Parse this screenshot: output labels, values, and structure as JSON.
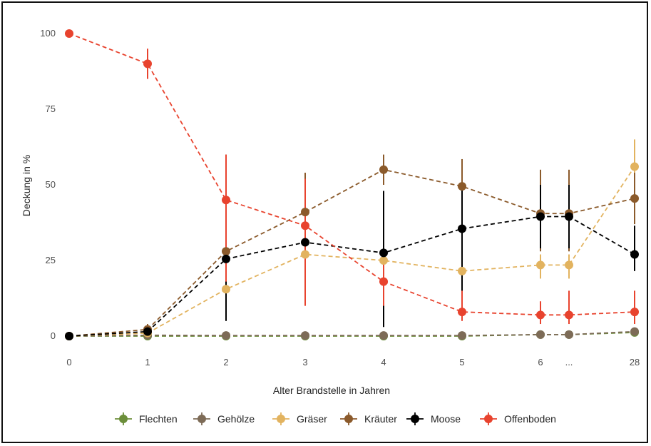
{
  "chart_data": {
    "type": "line",
    "xlabel": "Alter Brandstelle in Jahren",
    "ylabel": "Deckung in %",
    "x_categories": [
      "0",
      "1",
      "2",
      "3",
      "4",
      "5",
      "6",
      "...",
      "28"
    ],
    "y_ticks": [
      0,
      25,
      50,
      75,
      100
    ],
    "ylim": [
      0,
      100
    ],
    "grid": false,
    "legend_position": "bottom",
    "series": [
      {
        "name": "Flechten",
        "color": "#6b8e3a",
        "points": [
          {
            "x": "0",
            "y": 0
          },
          {
            "x": "1",
            "y": 0
          },
          {
            "x": "2",
            "y": 0
          },
          {
            "x": "3",
            "y": 0
          },
          {
            "x": "4",
            "y": 0
          },
          {
            "x": "5",
            "y": 0
          },
          {
            "x": "6",
            "y": 0.5
          },
          {
            "x": "...",
            "y": 0.5
          },
          {
            "x": "28",
            "y": 1.2
          }
        ]
      },
      {
        "name": "Gehölze",
        "color": "#7d6b57",
        "points": [
          {
            "x": "0",
            "y": 0
          },
          {
            "x": "1",
            "y": 0.3
          },
          {
            "x": "2",
            "y": 0.2
          },
          {
            "x": "3",
            "y": 0.2
          },
          {
            "x": "4",
            "y": 0.2
          },
          {
            "x": "5",
            "y": 0.2
          },
          {
            "x": "6",
            "y": 0.5
          },
          {
            "x": "...",
            "y": 0.5
          },
          {
            "x": "28",
            "y": 1.5
          }
        ]
      },
      {
        "name": "Gräser",
        "color": "#e2b35f",
        "points": [
          {
            "x": "0",
            "y": 0
          },
          {
            "x": "1",
            "y": 1
          },
          {
            "x": "2",
            "y": 15.5,
            "err": [
              12,
              19
            ]
          },
          {
            "x": "3",
            "y": 27
          },
          {
            "x": "4",
            "y": 25
          },
          {
            "x": "5",
            "y": 21.5
          },
          {
            "x": "6",
            "y": 23.5,
            "err": [
              19,
              27
            ]
          },
          {
            "x": "...",
            "y": 23.5,
            "err": [
              19,
              27
            ]
          },
          {
            "x": "28",
            "y": 56,
            "err": [
              47,
              65
            ]
          }
        ]
      },
      {
        "name": "Kräuter",
        "color": "#8b5a2b",
        "points": [
          {
            "x": "0",
            "y": 0
          },
          {
            "x": "1",
            "y": 2.2,
            "err": [
              0.5,
              4
            ]
          },
          {
            "x": "2",
            "y": 28,
            "err": [
              10,
              60
            ]
          },
          {
            "x": "3",
            "y": 41,
            "err": [
              28,
              54
            ]
          },
          {
            "x": "4",
            "y": 55,
            "err": [
              50,
              60
            ]
          },
          {
            "x": "5",
            "y": 49.5,
            "err": [
              40,
              58.5
            ]
          },
          {
            "x": "6",
            "y": 40.5,
            "err": [
              28,
              55
            ]
          },
          {
            "x": "...",
            "y": 40.5,
            "err": [
              28,
              55
            ]
          },
          {
            "x": "28",
            "y": 45.5,
            "err": [
              37,
              54
            ]
          }
        ]
      },
      {
        "name": "Moose",
        "color": "#000000",
        "points": [
          {
            "x": "0",
            "y": 0
          },
          {
            "x": "1",
            "y": 1.5
          },
          {
            "x": "2",
            "y": 25.5,
            "err": [
              5,
              28
            ]
          },
          {
            "x": "3",
            "y": 31,
            "err": [
              28,
              50
            ]
          },
          {
            "x": "4",
            "y": 27.5,
            "err": [
              3,
              48
            ]
          },
          {
            "x": "5",
            "y": 35.5,
            "err": [
              12,
              49
            ]
          },
          {
            "x": "6",
            "y": 39.5,
            "err": [
              29,
              50
            ]
          },
          {
            "x": "...",
            "y": 39.5,
            "err": [
              29,
              50
            ]
          },
          {
            "x": "28",
            "y": 27,
            "err": [
              21.5,
              36.5
            ]
          }
        ]
      },
      {
        "name": "Offenboden",
        "color": "#e8432e",
        "points": [
          {
            "x": "0",
            "y": 100
          },
          {
            "x": "1",
            "y": 90,
            "err": [
              85,
              95
            ]
          },
          {
            "x": "2",
            "y": 45,
            "err": [
              18,
              60
            ]
          },
          {
            "x": "3",
            "y": 36.5,
            "err": [
              10,
              52
            ]
          },
          {
            "x": "4",
            "y": 18,
            "err": [
              10,
              24
            ]
          },
          {
            "x": "5",
            "y": 8,
            "err": [
              5,
              15
            ]
          },
          {
            "x": "6",
            "y": 7,
            "err": [
              4,
              11.5
            ]
          },
          {
            "x": "...",
            "y": 7,
            "err": [
              4,
              15
            ]
          },
          {
            "x": "28",
            "y": 8,
            "err": [
              4,
              15
            ]
          }
        ]
      }
    ]
  }
}
